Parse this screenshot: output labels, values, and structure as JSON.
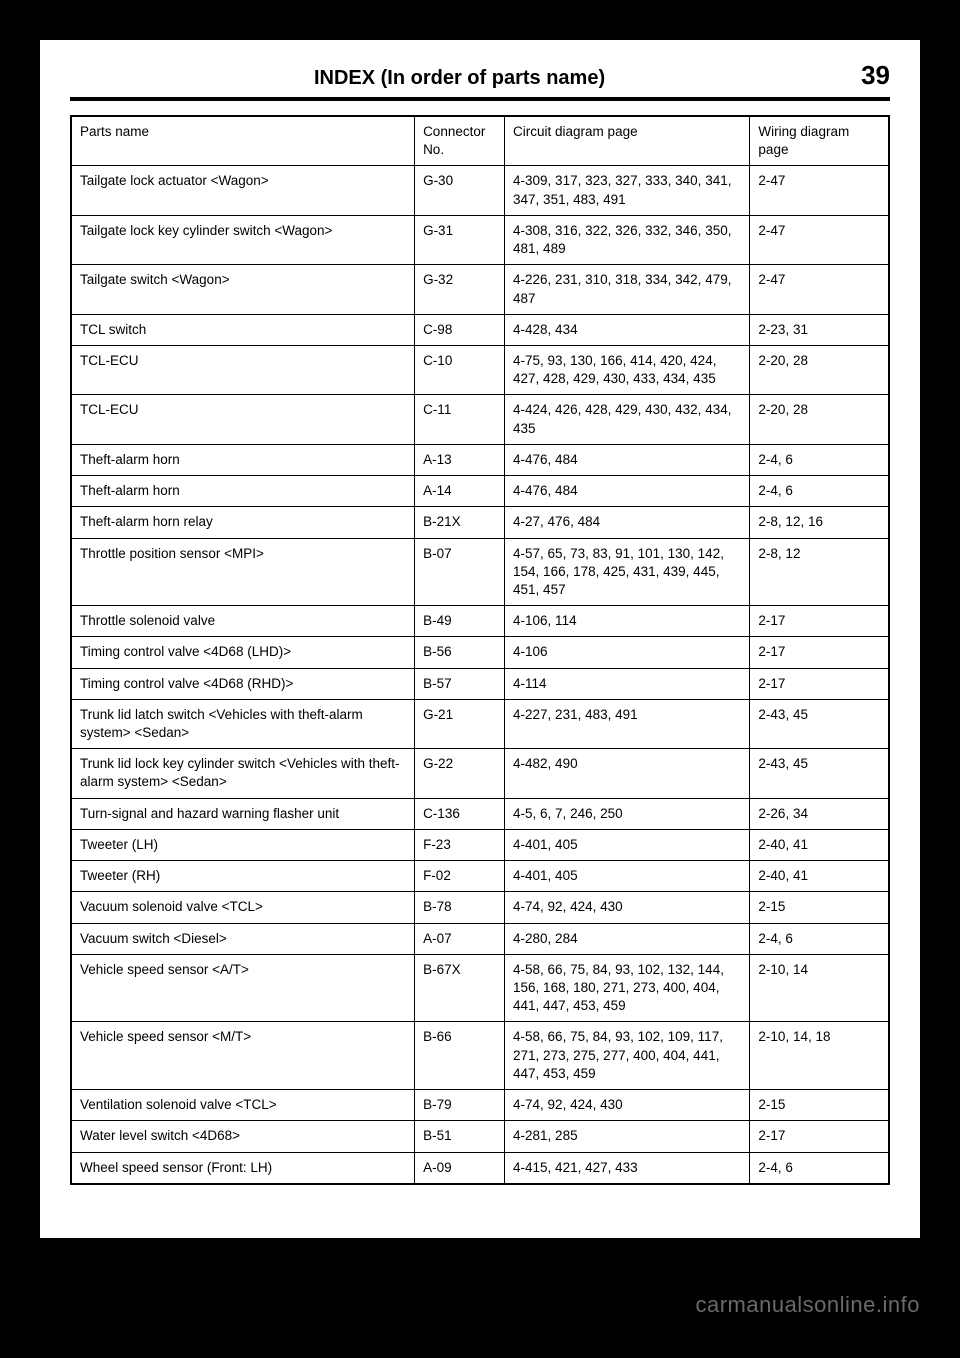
{
  "header": {
    "title": "INDEX (In order of parts name)",
    "page_number": "39"
  },
  "table": {
    "columns": [
      "Parts name",
      "Connector No.",
      "Circuit diagram page",
      "Wiring diagram page"
    ],
    "rows": [
      [
        "Tailgate lock actuator <Wagon>",
        "G-30",
        "4-309, 317, 323, 327, 333, 340, 341, 347, 351, 483, 491",
        "2-47"
      ],
      [
        "Tailgate lock key cylinder switch <Wagon>",
        "G-31",
        "4-308, 316, 322, 326, 332, 346, 350, 481, 489",
        "2-47"
      ],
      [
        "Tailgate switch <Wagon>",
        "G-32",
        "4-226, 231, 310, 318, 334, 342, 479, 487",
        "2-47"
      ],
      [
        "TCL switch",
        "C-98",
        "4-428, 434",
        "2-23, 31"
      ],
      [
        "TCL-ECU",
        "C-10",
        "4-75, 93, 130, 166, 414, 420, 424, 427, 428, 429, 430, 433, 434, 435",
        "2-20, 28"
      ],
      [
        "TCL-ECU",
        "C-11",
        "4-424, 426, 428, 429, 430, 432, 434, 435",
        "2-20, 28"
      ],
      [
        "Theft-alarm horn",
        "A-13",
        "4-476, 484",
        "2-4, 6"
      ],
      [
        "Theft-alarm horn",
        "A-14",
        "4-476, 484",
        "2-4, 6"
      ],
      [
        "Theft-alarm horn relay",
        "B-21X",
        "4-27, 476, 484",
        "2-8, 12, 16"
      ],
      [
        "Throttle position sensor <MPI>",
        "B-07",
        "4-57, 65, 73, 83, 91, 101, 130, 142, 154, 166, 178, 425, 431, 439, 445, 451, 457",
        "2-8, 12"
      ],
      [
        "Throttle solenoid valve",
        "B-49",
        "4-106, 114",
        "2-17"
      ],
      [
        "Timing control valve <4D68 (LHD)>",
        "B-56",
        "4-106",
        "2-17"
      ],
      [
        "Timing control valve <4D68 (RHD)>",
        "B-57",
        "4-114",
        "2-17"
      ],
      [
        "Trunk lid latch switch <Vehicles with theft-alarm system> <Sedan>",
        "G-21",
        "4-227, 231, 483, 491",
        "2-43, 45"
      ],
      [
        "Trunk lid lock key cylinder switch <Vehicles with theft-alarm system> <Sedan>",
        "G-22",
        "4-482, 490",
        "2-43, 45"
      ],
      [
        "Turn-signal and hazard warning flasher unit",
        "C-136",
        "4-5, 6, 7, 246, 250",
        "2-26, 34"
      ],
      [
        "Tweeter (LH)",
        "F-23",
        "4-401, 405",
        "2-40, 41"
      ],
      [
        "Tweeter (RH)",
        "F-02",
        "4-401, 405",
        "2-40, 41"
      ],
      [
        "Vacuum solenoid valve <TCL>",
        "B-78",
        "4-74, 92, 424, 430",
        "2-15"
      ],
      [
        "Vacuum switch <Diesel>",
        "A-07",
        "4-280, 284",
        "2-4, 6"
      ],
      [
        "Vehicle speed sensor <A/T>",
        "B-67X",
        "4-58, 66, 75, 84, 93, 102, 132, 144, 156, 168, 180, 271, 273, 400, 404, 441, 447, 453, 459",
        "2-10, 14"
      ],
      [
        "Vehicle speed sensor <M/T>",
        "B-66",
        "4-58, 66, 75, 84, 93, 102, 109, 117, 271, 273, 275, 277, 400, 404, 441, 447, 453, 459",
        "2-10, 14, 18"
      ],
      [
        "Ventilation solenoid valve <TCL>",
        "B-79",
        "4-74, 92, 424, 430",
        "2-15"
      ],
      [
        "Water level switch <4D68>",
        "B-51",
        "4-281, 285",
        "2-17"
      ],
      [
        "Wheel speed sensor (Front: LH)",
        "A-09",
        "4-415, 421, 427, 433",
        "2-4, 6"
      ]
    ]
  },
  "watermark": "carmanualsonline.info"
}
